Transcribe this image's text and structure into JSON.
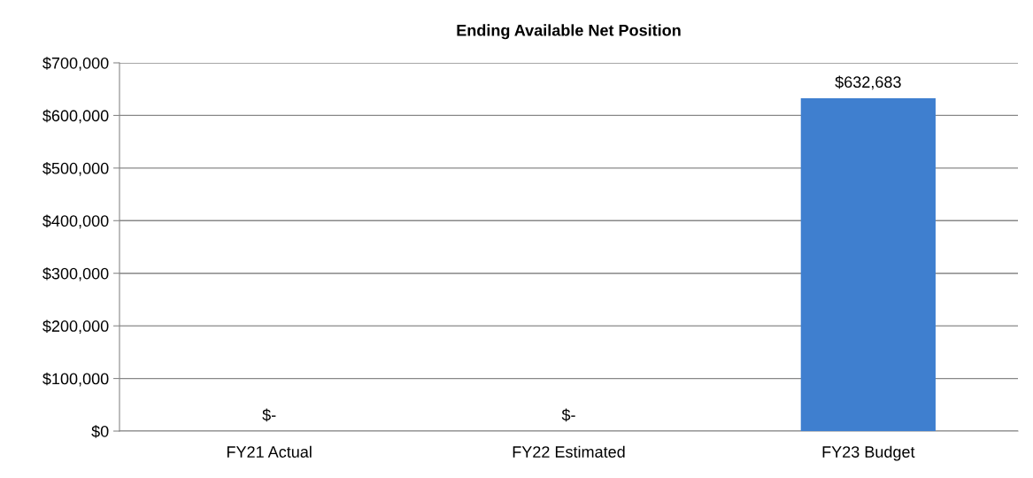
{
  "chart_data": {
    "type": "bar",
    "title": "Ending Available Net Position",
    "categories": [
      "FY21 Actual",
      "FY22 Estimated",
      "FY23 Budget"
    ],
    "values": [
      0,
      0,
      632683
    ],
    "value_labels": [
      "$-",
      "$-",
      "$632,683"
    ],
    "color": "#3f7fcf",
    "ylim": [
      0,
      700000
    ],
    "yticks": [
      {
        "value": 0,
        "label": "$0"
      },
      {
        "value": 100000,
        "label": "$100,000"
      },
      {
        "value": 200000,
        "label": "$200,000"
      },
      {
        "value": 300000,
        "label": "$300,000"
      },
      {
        "value": 400000,
        "label": "$400,000"
      },
      {
        "value": 500000,
        "label": "$500,000"
      },
      {
        "value": 600000,
        "label": "$600,000"
      },
      {
        "value": 700000,
        "label": "$700,000"
      }
    ],
    "grid": "y",
    "legend": false
  }
}
